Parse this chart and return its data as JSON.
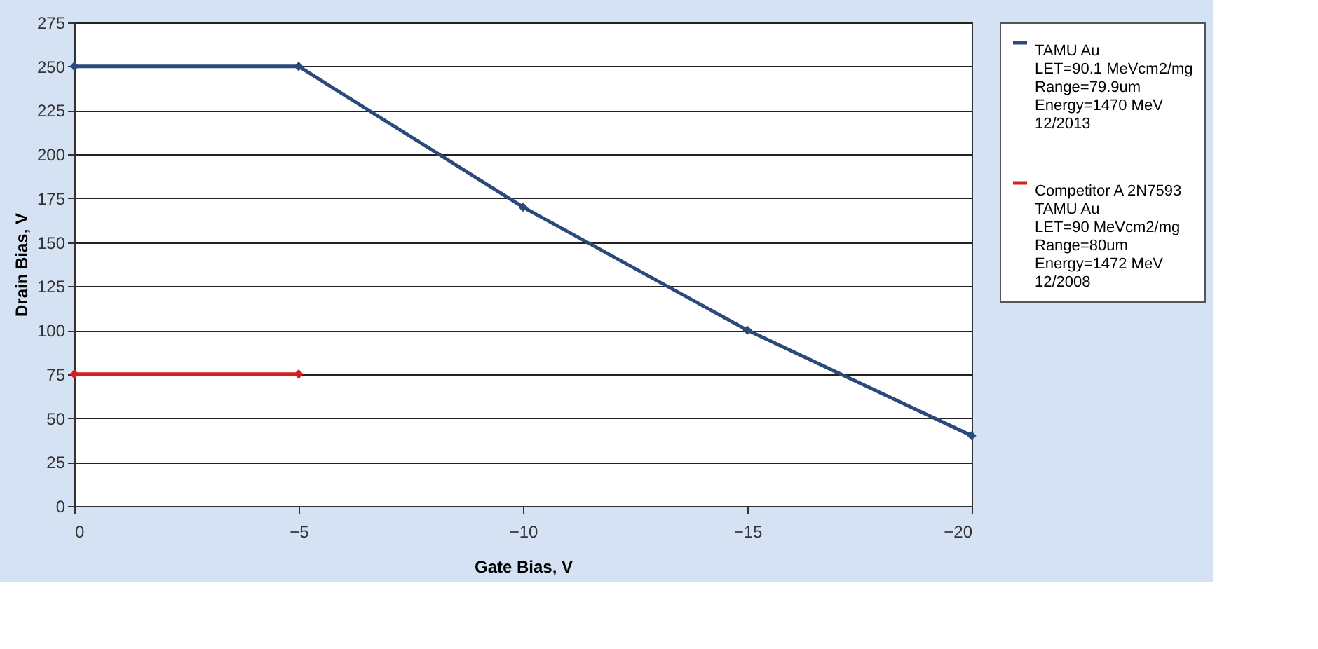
{
  "chart_data": {
    "type": "line",
    "xlabel": "Gate Bias, V",
    "ylabel": "Drain Bias, V",
    "x": [
      0,
      -5,
      -10,
      -15,
      -20
    ],
    "series": [
      {
        "name": "TAMU Au\nLET=90.1 MeVcm2/mg\nRange=79.9um\nEnergy=1470 MeV\n12/2013",
        "color": "#2b4a7c",
        "values": [
          250,
          250,
          170,
          100,
          40
        ]
      },
      {
        "name": "Competitor A 2N7593\nTAMU Au\nLET=90 MeVcm2/mg\nRange=80um\nEnergy=1472 MeV\n12/2008",
        "color": "#d81e1e",
        "x": [
          0,
          -5
        ],
        "values": [
          75,
          75
        ]
      }
    ],
    "xlim": [
      0,
      -20
    ],
    "xticks": [
      0,
      -5,
      -10,
      -15,
      -20
    ],
    "ylim": [
      0,
      275
    ],
    "yticks": [
      0,
      25,
      50,
      75,
      100,
      125,
      150,
      175,
      200,
      225,
      250,
      275
    ],
    "grid": "y",
    "legend": "right",
    "marker": "diamond",
    "line_style": "solid"
  }
}
